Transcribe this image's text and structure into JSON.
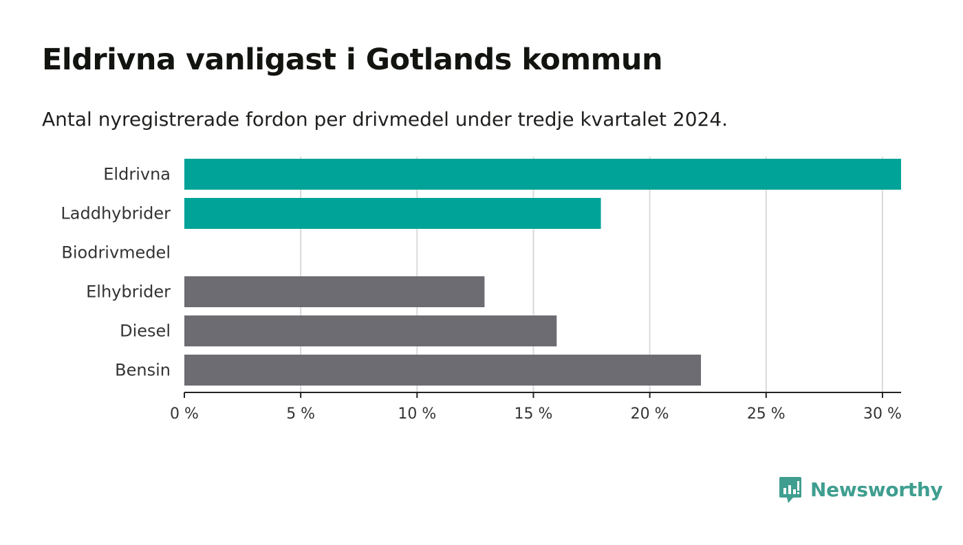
{
  "title": "Eldrivna vanligast i Gotlands kommun",
  "subtitle": "Antal nyregistrerade fordon per drivmedel under tredje kvartalet 2024.",
  "brand": {
    "name": "Newsworthy",
    "color": "#3f9e8f"
  },
  "chart_data": {
    "type": "bar",
    "orientation": "horizontal",
    "categories": [
      "Eldrivna",
      "Laddhybrider",
      "Biodrivmedel",
      "Elhybrider",
      "Diesel",
      "Bensin"
    ],
    "values": [
      30.8,
      17.9,
      0,
      12.9,
      16.0,
      22.2
    ],
    "colors": [
      "#00a398",
      "#00a398",
      "#00a398",
      "#6d6c72",
      "#6d6c72",
      "#6d6c72"
    ],
    "xlim": [
      0,
      30.8
    ],
    "xticks": [
      0,
      5,
      10,
      15,
      20,
      25,
      30
    ],
    "xtick_labels": [
      "0 %",
      "5 %",
      "10 %",
      "15 %",
      "20 %",
      "25 %",
      "30 %"
    ],
    "grid": "vertical",
    "xlabel": "",
    "ylabel": ""
  }
}
